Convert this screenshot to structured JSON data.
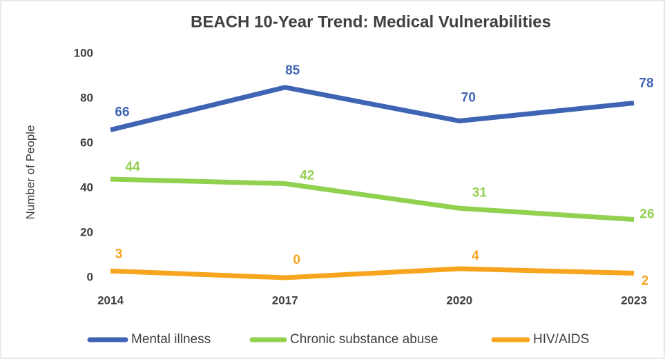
{
  "chart_data": {
    "type": "line",
    "title": "BEACH 10-Year Trend: Medical Vulnerabilities",
    "y_label": "Number of People",
    "categories": [
      "2014",
      "2017",
      "2020",
      "2023"
    ],
    "series": [
      {
        "name": "Mental illness",
        "color": "#4064b4",
        "values": [
          66,
          85,
          70,
          78
        ]
      },
      {
        "name": "Chronic substance abuse",
        "color": "#92d050",
        "values": [
          44,
          42,
          31,
          26
        ]
      },
      {
        "name": "HIV/AIDS",
        "color": "#f7a51f",
        "values": [
          3,
          0,
          4,
          2
        ]
      }
    ],
    "ylim": [
      0,
      100
    ],
    "yticks": [
      0,
      20,
      40,
      60,
      80,
      100
    ],
    "grid": false,
    "legend": "bottom"
  }
}
